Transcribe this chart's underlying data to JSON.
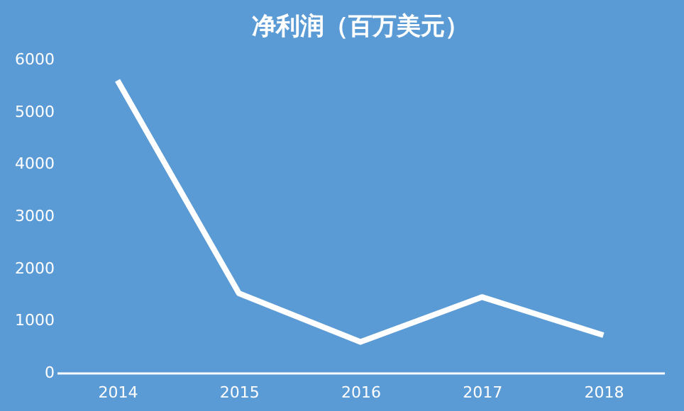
{
  "chart_data": {
    "type": "line",
    "title": "净利润（百万美元）",
    "categories": [
      "2014",
      "2015",
      "2016",
      "2017",
      "2018"
    ],
    "series": [
      {
        "color": "#ffffff",
        "values": [
          5600,
          1520,
          590,
          1450,
          720
        ]
      }
    ],
    "ylim": [
      0,
      6000
    ],
    "yticks": [
      0,
      1000,
      2000,
      3000,
      4000,
      5000,
      6000
    ],
    "grid": false,
    "legend": false,
    "marker": "none",
    "line_style": "solid"
  }
}
